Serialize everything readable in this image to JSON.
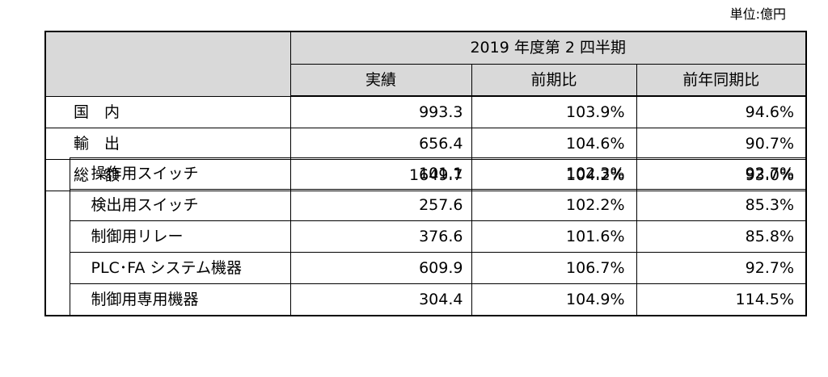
{
  "unit_label": "単位:億円",
  "header": {
    "period": "2019 年度第 2 四半期",
    "columns": [
      "実績",
      "前期比",
      "前年同期比"
    ]
  },
  "rows": [
    {
      "label": "国　内",
      "actual": "993.3",
      "qoq": "103.9%",
      "yoy": "94.6%"
    },
    {
      "label": "輸　出",
      "actual": "656.4",
      "qoq": "104.6%",
      "yoy": "90.7%"
    },
    {
      "label": "総　額",
      "actual": "1649.7",
      "qoq": "104.2%",
      "yoy": "93.0%"
    }
  ],
  "sub_rows": [
    {
      "label": "操作用スイッチ",
      "actual": "101.1",
      "qoq": "102.3%",
      "yoy": "92.7%"
    },
    {
      "label": "検出用スイッチ",
      "actual": "257.6",
      "qoq": "102.2%",
      "yoy": "85.3%"
    },
    {
      "label": "制御用リレー",
      "actual": "376.6",
      "qoq": "101.6%",
      "yoy": "85.8%"
    },
    {
      "label": "PLC･FA システム機器",
      "actual": "609.9",
      "qoq": "106.7%",
      "yoy": "92.7%"
    },
    {
      "label": "制御用専用機器",
      "actual": "304.4",
      "qoq": "104.9%",
      "yoy": "114.5%"
    }
  ]
}
